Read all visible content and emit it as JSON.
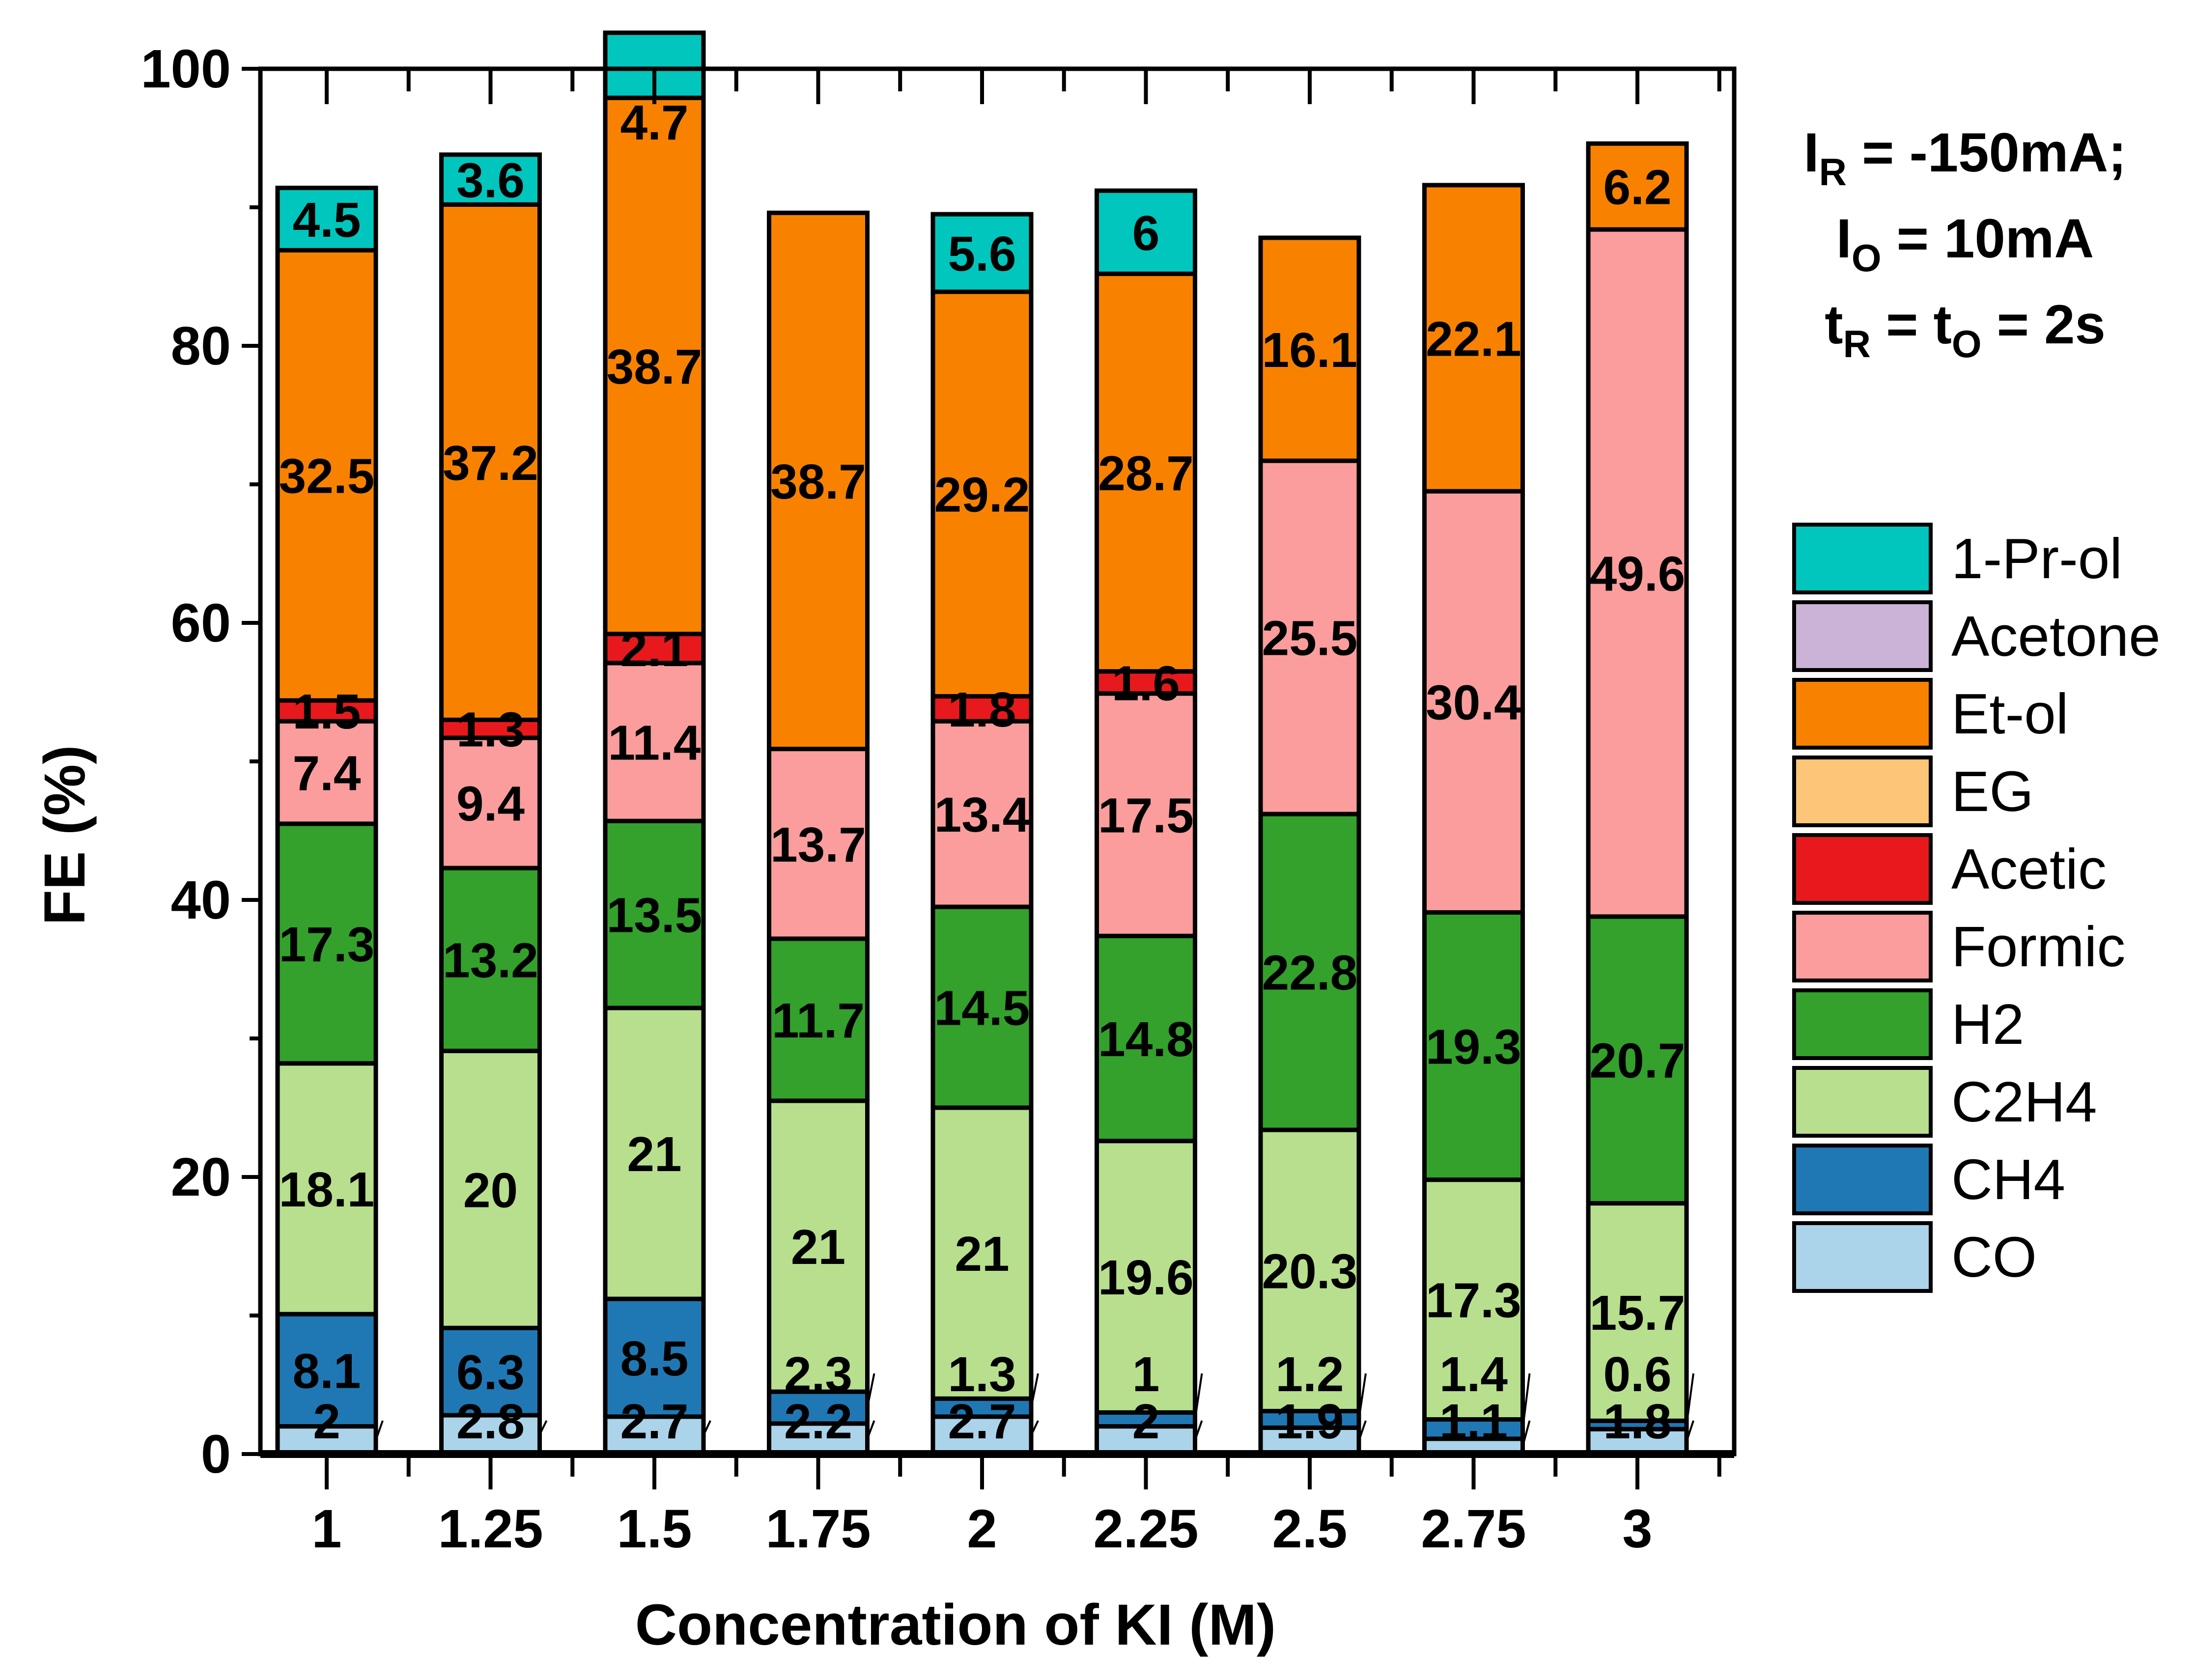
{
  "chart_data": {
    "type": "bar",
    "stacked": true,
    "title": "",
    "xlabel": "Concentration of KI (M)",
    "ylabel": "FE (%)",
    "ylim": [
      0,
      100
    ],
    "yticks": [
      0,
      20,
      40,
      60,
      80,
      100
    ],
    "categories": [
      "1",
      "1.25",
      "1.5",
      "1.75",
      "2",
      "2.25",
      "2.5",
      "2.75",
      "3"
    ],
    "legend_position": "right",
    "series": [
      {
        "name": "CO",
        "color": "#abd3ea",
        "values": [
          2,
          2.8,
          2.7,
          2.2,
          2.7,
          2,
          1.9,
          1.1,
          1.8
        ]
      },
      {
        "name": "CH4",
        "color": "#1f78b4",
        "values": [
          8.1,
          6.3,
          8.5,
          2.3,
          1.3,
          1,
          1.2,
          1.4,
          0.6
        ]
      },
      {
        "name": "C2H4",
        "color": "#b7df8d",
        "values": [
          18.1,
          20,
          21,
          21,
          21,
          19.6,
          20.3,
          17.3,
          15.7
        ]
      },
      {
        "name": "H2",
        "color": "#33a12c",
        "values": [
          17.3,
          13.2,
          13.5,
          11.7,
          14.5,
          14.8,
          22.8,
          19.3,
          20.7
        ]
      },
      {
        "name": "Formic",
        "color": "#fb9d9d",
        "values": [
          7.4,
          9.4,
          11.4,
          13.7,
          13.4,
          17.5,
          25.5,
          30.4,
          49.6
        ]
      },
      {
        "name": "Acetic",
        "color": "#e8191c",
        "values": [
          1.5,
          1.3,
          2.1,
          0,
          1.8,
          1.6,
          0,
          0,
          0
        ]
      },
      {
        "name": "EG",
        "color": "#fdc578",
        "values": [
          0,
          0,
          0,
          0,
          0,
          0,
          0,
          0,
          0
        ]
      },
      {
        "name": "Et-ol",
        "color": "#f88200",
        "values": [
          32.5,
          37.2,
          38.7,
          38.7,
          29.2,
          28.7,
          16.1,
          22.1,
          6.2
        ]
      },
      {
        "name": "Acetone",
        "color": "#cab3d6",
        "values": [
          0,
          0,
          0,
          0,
          0,
          0,
          0,
          0,
          0
        ]
      },
      {
        "name": "1-Pr-ol",
        "color": "#00c6bd",
        "values": [
          4.5,
          3.6,
          4.7,
          0,
          5.6,
          6,
          0,
          0,
          0
        ]
      }
    ],
    "legend_order": [
      "1-Pr-ol",
      "Acetone",
      "Et-ol",
      "EG",
      "Acetic",
      "Formic",
      "H2",
      "C2H4",
      "CH4",
      "CO"
    ],
    "annotation": {
      "line1": {
        "main": "I",
        "sub": "R",
        "rest": " = -150mA;"
      },
      "line2": {
        "main": "I",
        "sub": "O",
        "rest": " = 10mA"
      },
      "line3": {
        "t1": "t",
        "sub1": "R",
        "mid": " = t",
        "sub2": "O",
        "rest": " = 2s"
      }
    }
  }
}
